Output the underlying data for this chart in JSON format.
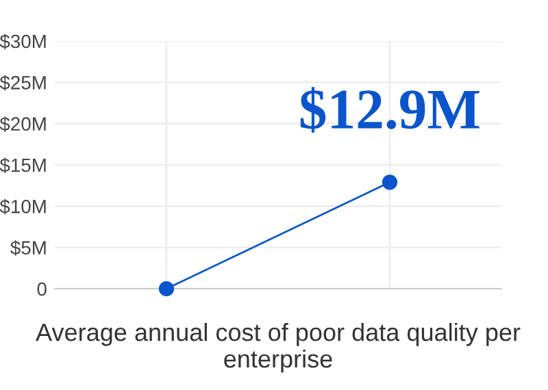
{
  "chart_data": {
    "type": "line",
    "xlabel": "Average annual cost of poor data quality per enterprise",
    "categories": [
      null,
      null
    ],
    "series": [
      {
        "color": "#0a55cc",
        "values": [
          0,
          12.9
        ],
        "value_labels": [
          null,
          "$12.9M"
        ]
      }
    ],
    "ylim": [
      0,
      30
    ],
    "yticks": [
      {
        "value": 0,
        "label": "0"
      },
      {
        "value": 5,
        "label": "$5M"
      },
      {
        "value": 10,
        "label": "$10M"
      },
      {
        "value": 15,
        "label": "$15M"
      },
      {
        "value": 20,
        "label": "$20M"
      },
      {
        "value": 25,
        "label": "$25M"
      },
      {
        "value": 30,
        "label": "$30M"
      }
    ],
    "grid": true,
    "marker": "circle",
    "line_style": "solid"
  }
}
